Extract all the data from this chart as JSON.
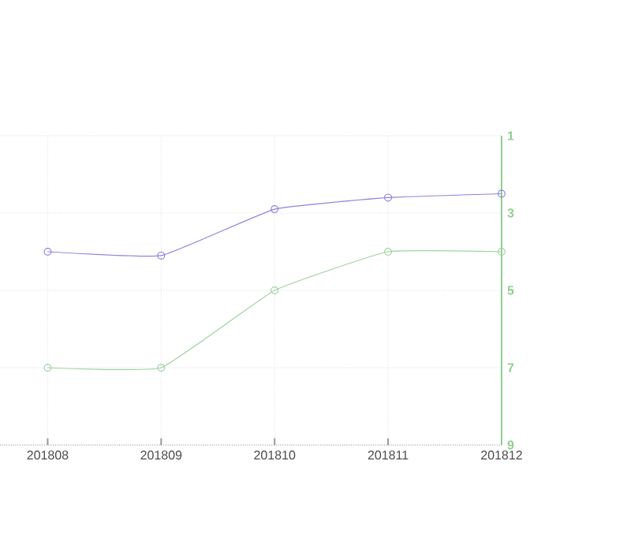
{
  "chart_data": {
    "type": "line",
    "categories": [
      "201808",
      "201809",
      "201810",
      "201811",
      "201812"
    ],
    "series": [
      {
        "color": "#9282dc",
        "values": [
          4.0,
          4.1,
          2.9,
          2.6,
          2.5
        ]
      },
      {
        "color": "#9fd3a2",
        "values": [
          7,
          7,
          5,
          4,
          4
        ]
      }
    ],
    "ylim": [
      9,
      1
    ],
    "yticks": [
      1,
      3,
      5,
      7,
      9
    ],
    "grid": true,
    "marker": "circle"
  }
}
